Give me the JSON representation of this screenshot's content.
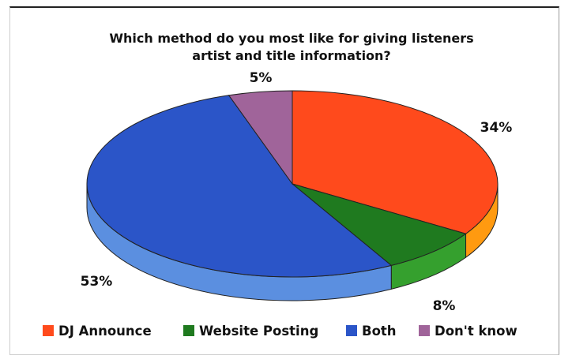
{
  "chart_data": {
    "type": "pie",
    "title": "Which method do you most like for giving listeners artist and title information?",
    "title_lines": [
      "Which method do you most like for giving listeners",
      "artist and title information?"
    ],
    "categories": [
      "DJ Announce",
      "Website Posting",
      "Both",
      "Don't know"
    ],
    "values": [
      34,
      8,
      53,
      5
    ],
    "value_labels": [
      "34%",
      "8%",
      "53%",
      "5%"
    ],
    "colors": [
      "#ff4a1c",
      "#1f7a1f",
      "#2b55c8",
      "#a0649a"
    ],
    "side_colors": [
      "#ff9a10",
      "#35a02e",
      "#5b8fe0",
      "#a0649a"
    ],
    "legend_position": "bottom",
    "style": "3d-pie"
  }
}
